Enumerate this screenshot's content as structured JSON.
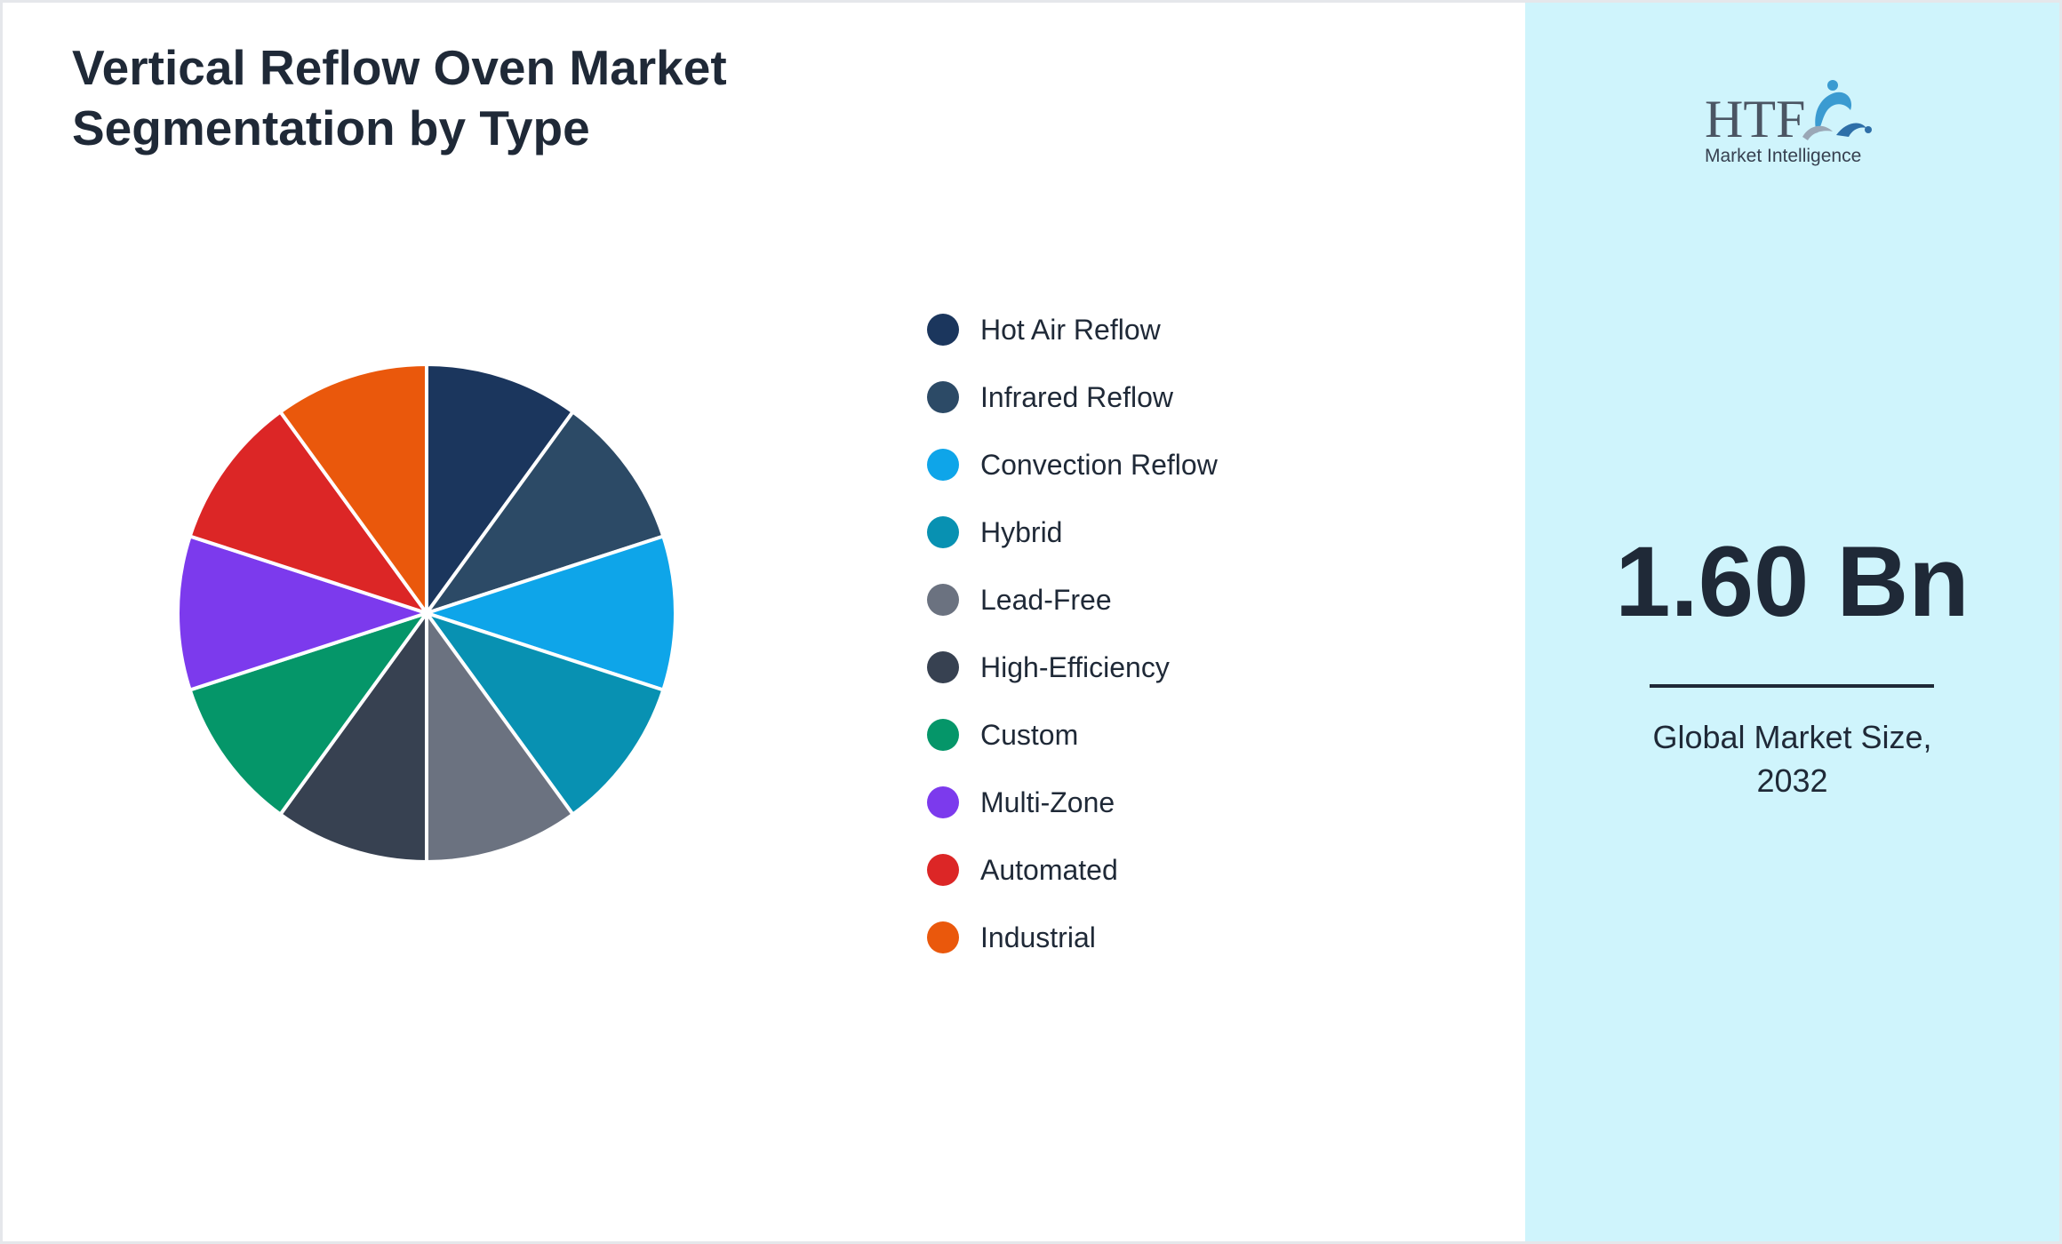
{
  "title_lines": [
    "Vertical Reflow Oven Market",
    "Segmentation by Type"
  ],
  "chart_data": {
    "type": "pie",
    "title": "Vertical Reflow Oven Market Segmentation by Type",
    "categories": [
      "Hot Air Reflow",
      "Infrared Reflow",
      "Convection Reflow",
      "Hybrid",
      "Lead-Free",
      "High-Efficiency",
      "Custom",
      "Multi-Zone",
      "Automated",
      "Industrial"
    ],
    "values": [
      10,
      10,
      10,
      10,
      10,
      10,
      10,
      10,
      10,
      10
    ],
    "colors": [
      "#1b365d",
      "#2c4a66",
      "#0ea5e9",
      "#0891b2",
      "#6b7280",
      "#374151",
      "#059669",
      "#7c3aed",
      "#dc2626",
      "#ea580c"
    ],
    "legend_position": "right",
    "start_angle_deg": 0,
    "direction": "clockwise"
  },
  "logo": {
    "wordmark": "HTF",
    "tagline": "Market Intelligence"
  },
  "stat": {
    "value": "1.60 Bn",
    "caption_lines": [
      "Global Market Size,",
      "2032"
    ]
  },
  "colors": {
    "right_panel_bg": "#cff4fc",
    "text": "#1f2937",
    "slice_border": "#ffffff"
  }
}
